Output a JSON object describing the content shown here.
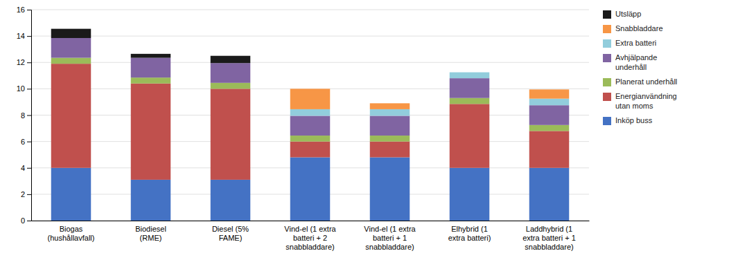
{
  "chart_data": {
    "type": "bar",
    "stacked": true,
    "categories": [
      "Biogas\n(hushållavfall)",
      "Biodiesel\n(RME)",
      "Diesel (5%\nFAME)",
      "Vind-el (1 extra\nbatteri + 2\nsnabbladdare)",
      "Vind-el (1 extra\nbatteri + 1\nsnabbladdare)",
      "Elhybrid (1\nextra batteri)",
      "Laddhybrid (1\nextra batteri + 1\nsnabbladdare)"
    ],
    "series": [
      {
        "name": "Inköp buss",
        "color": "#4472C4",
        "values": [
          4.0,
          3.1,
          3.1,
          4.8,
          4.8,
          4.0,
          4.0
        ]
      },
      {
        "name": "Energianvändning\nutan moms",
        "color": "#C0504D",
        "values": [
          7.9,
          7.3,
          6.9,
          1.2,
          1.2,
          4.85,
          2.8
        ]
      },
      {
        "name": "Planerat underhåll",
        "color": "#9BBB59",
        "values": [
          0.45,
          0.45,
          0.45,
          0.45,
          0.45,
          0.45,
          0.45
        ]
      },
      {
        "name": "Avhjälpande\nunderhåll",
        "color": "#8064A2",
        "values": [
          1.5,
          1.5,
          1.5,
          1.5,
          1.5,
          1.5,
          1.5
        ]
      },
      {
        "name": "Extra batteri",
        "color": "#92CDDC",
        "values": [
          0.0,
          0.0,
          0.0,
          0.5,
          0.5,
          0.45,
          0.5
        ]
      },
      {
        "name": "Snabbladdare",
        "color": "#F79646",
        "values": [
          0.0,
          0.0,
          0.0,
          1.55,
          0.45,
          0.0,
          0.7
        ]
      },
      {
        "name": "Utsläpp",
        "color": "#1A1A1A",
        "values": [
          0.7,
          0.3,
          0.55,
          0.0,
          0.0,
          0.0,
          0.0
        ]
      }
    ],
    "ylim": [
      0,
      16
    ],
    "yticks": [
      0,
      2,
      4,
      6,
      8,
      10,
      12,
      14,
      16
    ],
    "grid": true,
    "legend": "right"
  }
}
